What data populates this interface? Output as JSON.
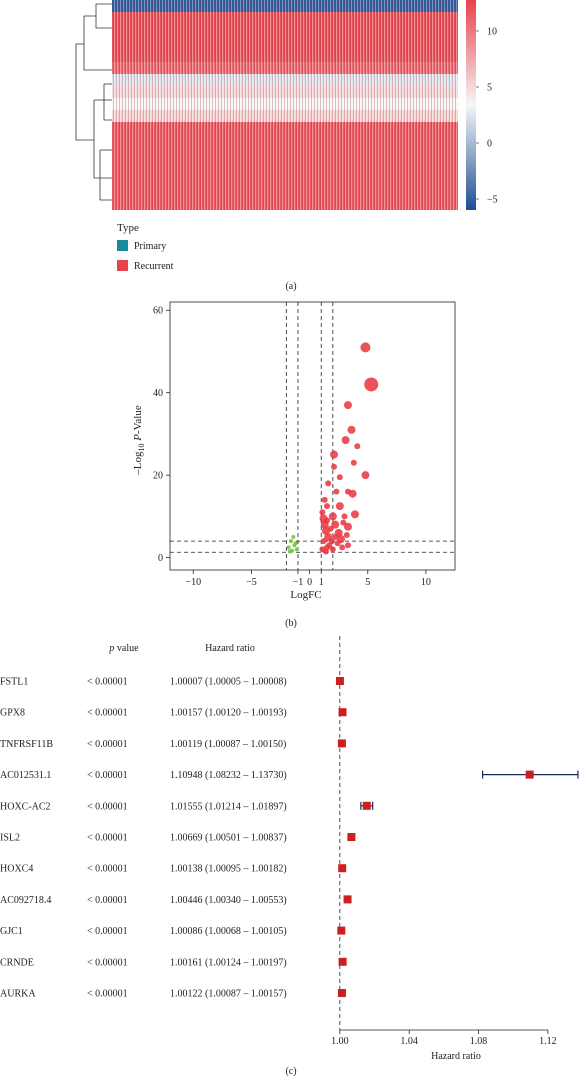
{
  "panel_a": {
    "label": "(a)",
    "colorbar_ticks": [
      10,
      5,
      0,
      -5
    ],
    "colors": {
      "high": "#e8424a",
      "mid": "#f6f6f6",
      "low": "#1c4e94"
    },
    "legend_title": "Type",
    "legend": [
      {
        "name": "Primary",
        "color": "#1a8a9a"
      },
      {
        "name": "Recurrent",
        "color": "#e8424a"
      }
    ]
  },
  "panel_b": {
    "label": "(b)",
    "chart_data": {
      "type": "scatter",
      "xlabel": "LogFC",
      "ylabel_prefix": "–Log",
      "ylabel_sub": "10",
      "ylabel_p": "P",
      "ylabel_suffix": "-Value",
      "xlim": [
        -12,
        12.5
      ],
      "ylim": [
        -3,
        62
      ],
      "xticks": [
        -10,
        -5,
        -1,
        0,
        1,
        5,
        10
      ],
      "xtick_labels": [
        "−10",
        "−5",
        "−1",
        "0",
        "1",
        "5",
        "10"
      ],
      "yticks": [
        0,
        20,
        40,
        60
      ],
      "vlines": [
        -2,
        -1,
        1,
        2
      ],
      "hlines": [
        1.3,
        4
      ],
      "colors": {
        "up": "#e8343c",
        "down": "#7ac143"
      },
      "points_up": [
        [
          4.8,
          51,
          5
        ],
        [
          5.3,
          42,
          7
        ],
        [
          3.3,
          37,
          4
        ],
        [
          3.6,
          31,
          4
        ],
        [
          3.1,
          28.5,
          4
        ],
        [
          4.1,
          27,
          3
        ],
        [
          2.1,
          25,
          4
        ],
        [
          4.8,
          20,
          4
        ],
        [
          2.6,
          19.5,
          3
        ],
        [
          2.1,
          22,
          3
        ],
        [
          3.8,
          23,
          3
        ],
        [
          1.6,
          18,
          3
        ],
        [
          3.7,
          15.5,
          4
        ],
        [
          3.3,
          16,
          3
        ],
        [
          2.3,
          16,
          3
        ],
        [
          1.3,
          14,
          3
        ],
        [
          1.5,
          12.5,
          3
        ],
        [
          2.6,
          12.5,
          4
        ],
        [
          1.1,
          11,
          3
        ],
        [
          3.9,
          10.5,
          4
        ],
        [
          1.2,
          9.5,
          4
        ],
        [
          2.0,
          10,
          4
        ],
        [
          3.0,
          10,
          3
        ],
        [
          1.3,
          8,
          4
        ],
        [
          2.2,
          8,
          4
        ],
        [
          3.3,
          7.5,
          4
        ],
        [
          1.4,
          6.5,
          4
        ],
        [
          2.5,
          6,
          4
        ],
        [
          1.6,
          5,
          4
        ],
        [
          2.7,
          4.5,
          4
        ],
        [
          3.2,
          5.5,
          3
        ],
        [
          1.2,
          4,
          3
        ],
        [
          1.9,
          4,
          3
        ],
        [
          2.4,
          3.5,
          3
        ],
        [
          3.3,
          3,
          3
        ],
        [
          1.5,
          2.5,
          3
        ],
        [
          1.1,
          2,
          3
        ],
        [
          2.0,
          2,
          3
        ],
        [
          2.8,
          2.5,
          3
        ],
        [
          1.4,
          1.5,
          3
        ],
        [
          1.7,
          3,
          3
        ],
        [
          2.2,
          5,
          3
        ],
        [
          1.8,
          7,
          3
        ],
        [
          2.9,
          8.5,
          3
        ],
        [
          1.5,
          9,
          3
        ]
      ],
      "points_down": [
        [
          -1.4,
          5,
          2
        ],
        [
          -1.6,
          4,
          2
        ],
        [
          -1.3,
          3,
          2
        ],
        [
          -1.8,
          2.5,
          2
        ],
        [
          -1.1,
          2,
          2
        ],
        [
          -1.5,
          1.7,
          2
        ],
        [
          -1.2,
          3.5,
          2
        ],
        [
          -1.7,
          1.5,
          2
        ]
      ]
    }
  },
  "panel_c": {
    "label": "(c)",
    "header_p": "p",
    "header_value": "value",
    "header_hr": "Hazard ratio",
    "xlabel": "Hazard ratio",
    "xticks": [
      1.0,
      1.04,
      1.08,
      1.12
    ],
    "xtick_labels": [
      "1.00",
      "1.04",
      "1.08",
      "1.12"
    ],
    "xlim": [
      0.9978,
      1.1385
    ],
    "marker_color": "#cc1f1f",
    "ci_color": "#1e2a5e",
    "rows": [
      {
        "gene": "FSTL1",
        "p": "< 0.00001",
        "text": "1.00007 (1.00005 – 1.00008)",
        "hr": 1.00007,
        "lo": 1.00005,
        "hi": 1.00008
      },
      {
        "gene": "GPX8",
        "p": "< 0.00001",
        "text": "1.00157 (1.00120 – 1.00193)",
        "hr": 1.00157,
        "lo": 1.0012,
        "hi": 1.00193
      },
      {
        "gene": "TNFRSF11B",
        "p": "< 0.00001",
        "text": "1.00119 (1.00087 – 1.00150)",
        "hr": 1.00119,
        "lo": 1.00087,
        "hi": 1.0015
      },
      {
        "gene": "AC012531.1",
        "p": "< 0.00001",
        "text": "1.10948 (1.08232 – 1.13730)",
        "hr": 1.10948,
        "lo": 1.08232,
        "hi": 1.1373
      },
      {
        "gene": "HOXC-AC2",
        "p": "< 0.00001",
        "text": "1.01555 (1.01214 – 1.01897)",
        "hr": 1.01555,
        "lo": 1.01214,
        "hi": 1.01897
      },
      {
        "gene": "ISL2",
        "p": "< 0.00001",
        "text": "1.00669 (1.00501 – 1.00837)",
        "hr": 1.00669,
        "lo": 1.00501,
        "hi": 1.00837
      },
      {
        "gene": "HOXC4",
        "p": "< 0.00001",
        "text": "1.00138 (1.00095 – 1.00182)",
        "hr": 1.00138,
        "lo": 1.00095,
        "hi": 1.00182
      },
      {
        "gene": "AC092718.4",
        "p": "< 0.00001",
        "text": "1.00446 (1.00340 – 1.00553)",
        "hr": 1.00446,
        "lo": 1.0034,
        "hi": 1.00553
      },
      {
        "gene": "GJC1",
        "p": "< 0.00001",
        "text": "1.00086 (1.00068 – 1.00105)",
        "hr": 1.00086,
        "lo": 1.00068,
        "hi": 1.00105
      },
      {
        "gene": "CRNDE",
        "p": "< 0.00001",
        "text": "1.00161 (1.00124 – 1.00197)",
        "hr": 1.00161,
        "lo": 1.00124,
        "hi": 1.00197
      },
      {
        "gene": "AURKA",
        "p": "< 0.00001",
        "text": "1.00122 (1.00087 – 1.00157)",
        "hr": 1.00122,
        "lo": 1.00087,
        "hi": 1.00157
      }
    ]
  }
}
